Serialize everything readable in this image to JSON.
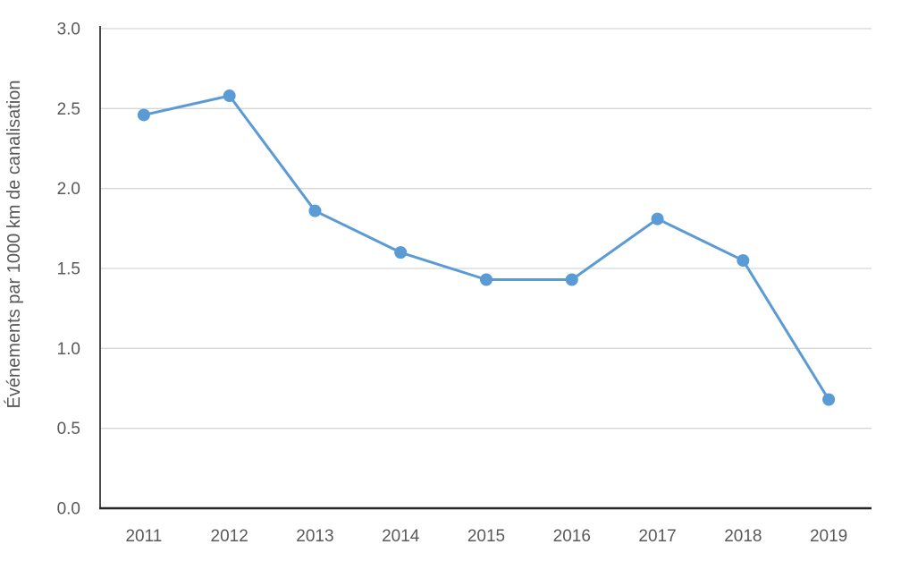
{
  "colors": {
    "line": "#5B9BD5",
    "marker": "#5B9BD5",
    "gridline": "#D6D6D6",
    "axis_left": "#4A4A4A",
    "axis_bottom": "#262626",
    "tick_label": "#595959",
    "axis_title": "#595959",
    "background": "#FFFFFF"
  },
  "chart_data": {
    "type": "line",
    "title": "",
    "xlabel": "",
    "ylabel": "Événements par 1000 km de canalisation",
    "categories": [
      "2011",
      "2012",
      "2013",
      "2014",
      "2015",
      "2016",
      "2017",
      "2018",
      "2019"
    ],
    "series": [
      {
        "name": "Événements par 1000 km de canalisation",
        "values": [
          2.46,
          2.58,
          1.86,
          1.6,
          1.43,
          1.43,
          1.81,
          1.55,
          0.68
        ]
      }
    ],
    "ylim": [
      0,
      3
    ],
    "yticks": [
      0.0,
      0.5,
      1.0,
      1.5,
      2.0,
      2.5,
      3.0
    ],
    "ytick_labels": [
      "0.0",
      "0.5",
      "1.0",
      "1.5",
      "2.0",
      "2.5",
      "3.0"
    ],
    "grid": true,
    "legend": false,
    "marker": "circle"
  }
}
